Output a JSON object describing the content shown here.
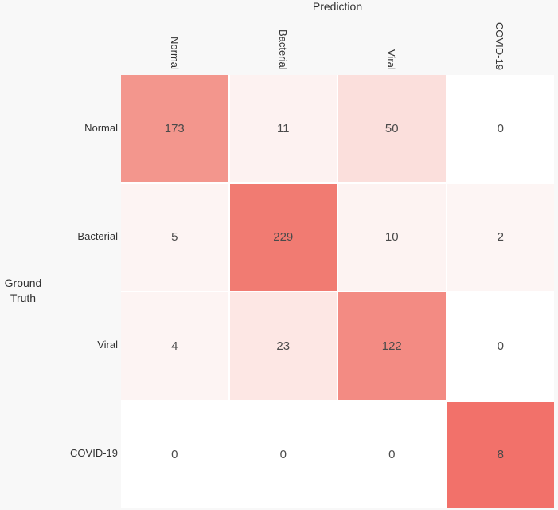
{
  "figure": {
    "background_color": "#f8f8f8",
    "x_axis_title": "Prediction",
    "y_axis_title": "Ground Truth"
  },
  "chart_data": {
    "type": "heatmap",
    "title": "Prediction",
    "xlabel": "Prediction",
    "ylabel": "Ground Truth",
    "x_categories": [
      "Normal",
      "Bacterial",
      "Viral",
      "COVID-19"
    ],
    "y_categories": [
      "Normal",
      "Bacterial",
      "Viral",
      "COVID-19"
    ],
    "values": [
      [
        173,
        11,
        50,
        0
      ],
      [
        5,
        229,
        10,
        2
      ],
      [
        4,
        23,
        122,
        0
      ],
      [
        0,
        0,
        0,
        8
      ]
    ],
    "normalization": "row",
    "cell_colors": [
      [
        "#f3968d",
        "#fdf2f1",
        "#fbdfdc",
        "#ffffff"
      ],
      [
        "#fdf4f3",
        "#f17b72",
        "#fdf3f2",
        "#fdf5f4"
      ],
      [
        "#fdf4f3",
        "#fde7e4",
        "#f38b83",
        "#ffffff"
      ],
      [
        "#ffffff",
        "#ffffff",
        "#ffffff",
        "#f2716a"
      ]
    ],
    "colorscale": {
      "min_color": "#ffffff",
      "max_color": "#f1746b"
    },
    "grid_gap_color": "#ffffff",
    "value_text_color": "#4a4a4a",
    "tick_label_color": "#333333",
    "legend": "none",
    "grid": "off"
  }
}
